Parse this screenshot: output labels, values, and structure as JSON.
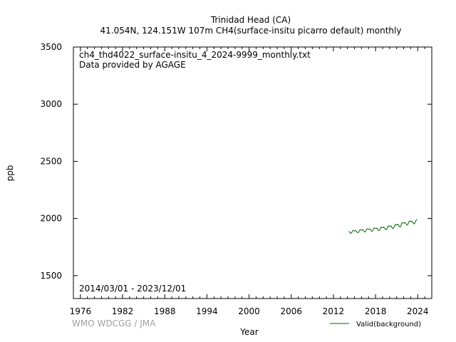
{
  "chart_data": {
    "type": "line",
    "title_line1": "Trinidad Head (CA)",
    "title_line2": "41.054N, 124.151W 107m    CH4(surface-insitu picarro default) monthly",
    "file_label": "ch4_thd4022_surface-insitu_4_2024-9999_monthly.txt",
    "provider_label": "Data provided by AGAGE",
    "period_label": "2014/03/01 - 2023/12/01",
    "watermark": "WMO WDCGG / JMA",
    "xlabel": "Year",
    "ylabel": "ppb",
    "xlim": [
      1975,
      2026
    ],
    "ylim": [
      1300,
      3500
    ],
    "x_ticks": [
      1976,
      1982,
      1988,
      1994,
      2000,
      2006,
      2012,
      2018,
      2024
    ],
    "y_ticks": [
      1500,
      2000,
      2500,
      3000,
      3500
    ],
    "legend_position": "bottom-right",
    "grid": false,
    "series": [
      {
        "name": "Valid(background)",
        "color": "#006400",
        "points": [
          [
            2014.17,
            1888
          ],
          [
            2014.25,
            1884
          ],
          [
            2014.33,
            1878
          ],
          [
            2014.42,
            1873
          ],
          [
            2014.5,
            1870
          ],
          [
            2014.58,
            1874
          ],
          [
            2014.67,
            1885
          ],
          [
            2014.75,
            1893
          ],
          [
            2014.83,
            1896
          ],
          [
            2014.92,
            1893
          ],
          [
            2015.0,
            1890
          ],
          [
            2015.08,
            1891
          ],
          [
            2015.17,
            1894
          ],
          [
            2015.25,
            1889
          ],
          [
            2015.33,
            1883
          ],
          [
            2015.42,
            1878
          ],
          [
            2015.5,
            1876
          ],
          [
            2015.58,
            1880
          ],
          [
            2015.67,
            1892
          ],
          [
            2015.75,
            1900
          ],
          [
            2015.83,
            1903
          ],
          [
            2015.92,
            1901
          ],
          [
            2016.0,
            1898
          ],
          [
            2016.08,
            1899
          ],
          [
            2016.17,
            1903
          ],
          [
            2016.25,
            1898
          ],
          [
            2016.33,
            1891
          ],
          [
            2016.42,
            1885
          ],
          [
            2016.5,
            1882
          ],
          [
            2016.58,
            1886
          ],
          [
            2016.67,
            1898
          ],
          [
            2016.75,
            1907
          ],
          [
            2016.83,
            1910
          ],
          [
            2016.92,
            1908
          ],
          [
            2017.0,
            1905
          ],
          [
            2017.08,
            1905
          ],
          [
            2017.17,
            1909
          ],
          [
            2017.25,
            1904
          ],
          [
            2017.33,
            1897
          ],
          [
            2017.42,
            1891
          ],
          [
            2017.5,
            1887
          ],
          [
            2017.58,
            1892
          ],
          [
            2017.67,
            1905
          ],
          [
            2017.75,
            1914
          ],
          [
            2017.83,
            1918
          ],
          [
            2017.92,
            1915
          ],
          [
            2018.0,
            1912
          ],
          [
            2018.08,
            1913
          ],
          [
            2018.17,
            1917
          ],
          [
            2018.25,
            1911
          ],
          [
            2018.33,
            1903
          ],
          [
            2018.42,
            1897
          ],
          [
            2018.5,
            1894
          ],
          [
            2018.58,
            1899
          ],
          [
            2018.67,
            1912
          ],
          [
            2018.75,
            1922
          ],
          [
            2018.83,
            1926
          ],
          [
            2018.92,
            1923
          ],
          [
            2019.0,
            1920
          ],
          [
            2019.08,
            1921
          ],
          [
            2019.17,
            1926
          ],
          [
            2019.25,
            1920
          ],
          [
            2019.33,
            1912
          ],
          [
            2019.42,
            1905
          ],
          [
            2019.5,
            1901
          ],
          [
            2019.58,
            1906
          ],
          [
            2019.67,
            1920
          ],
          [
            2019.75,
            1931
          ],
          [
            2019.83,
            1935
          ],
          [
            2019.92,
            1932
          ],
          [
            2020.0,
            1929
          ],
          [
            2020.08,
            1931
          ],
          [
            2020.17,
            1936
          ],
          [
            2020.25,
            1929
          ],
          [
            2020.33,
            1921
          ],
          [
            2020.42,
            1914
          ],
          [
            2020.5,
            1911
          ],
          [
            2020.58,
            1917
          ],
          [
            2020.67,
            1931
          ],
          [
            2020.75,
            1943
          ],
          [
            2020.83,
            1948
          ],
          [
            2020.92,
            1946
          ],
          [
            2021.0,
            1943
          ],
          [
            2021.08,
            1945
          ],
          [
            2021.17,
            1950
          ],
          [
            2021.25,
            1944
          ],
          [
            2021.33,
            1936
          ],
          [
            2021.42,
            1929
          ],
          [
            2021.5,
            1926
          ],
          [
            2021.58,
            1932
          ],
          [
            2021.67,
            1947
          ],
          [
            2021.75,
            1959
          ],
          [
            2021.83,
            1964
          ],
          [
            2021.92,
            1962
          ],
          [
            2022.0,
            1959
          ],
          [
            2022.08,
            1961
          ],
          [
            2022.17,
            1966
          ],
          [
            2022.25,
            1960
          ],
          [
            2022.33,
            1952
          ],
          [
            2022.42,
            1945
          ],
          [
            2022.5,
            1942
          ],
          [
            2022.58,
            1948
          ],
          [
            2022.67,
            1962
          ],
          [
            2022.75,
            1973
          ],
          [
            2022.83,
            1978
          ],
          [
            2022.92,
            1975
          ],
          [
            2023.0,
            1972
          ],
          [
            2023.08,
            1973
          ],
          [
            2023.17,
            1977
          ],
          [
            2023.25,
            1971
          ],
          [
            2023.33,
            1963
          ],
          [
            2023.42,
            1956
          ],
          [
            2023.5,
            1953
          ],
          [
            2023.58,
            1959
          ],
          [
            2023.67,
            1972
          ],
          [
            2023.75,
            1983
          ],
          [
            2023.83,
            1988
          ],
          [
            2023.92,
            1986
          ]
        ]
      }
    ]
  }
}
